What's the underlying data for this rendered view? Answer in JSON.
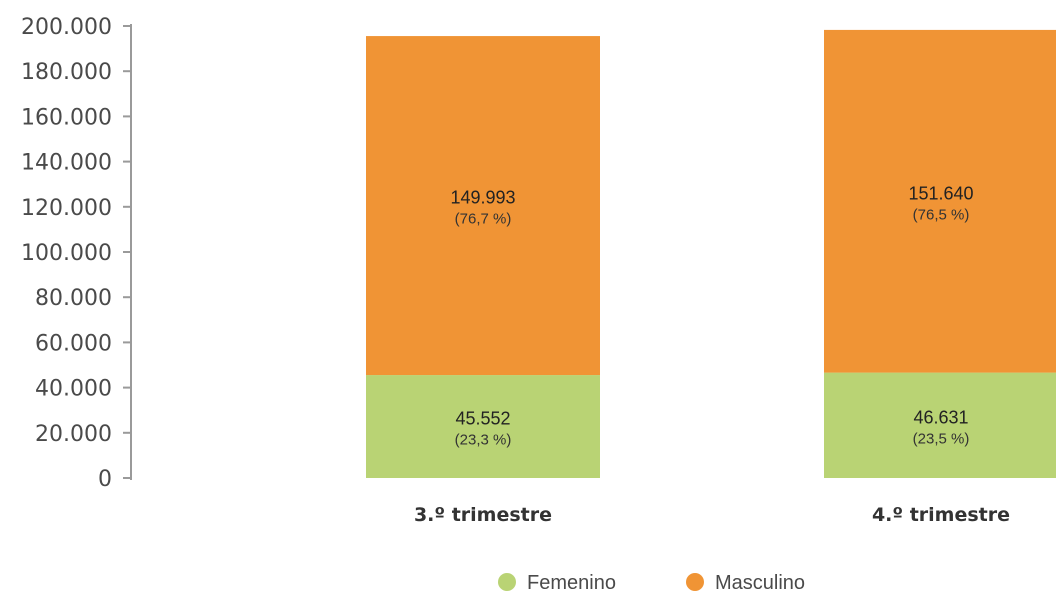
{
  "chart_data": {
    "type": "bar",
    "stacked": true,
    "categories": [
      "3.º trimestre",
      "4.º trimestre"
    ],
    "series": [
      {
        "name": "Femenino",
        "color": "#b9d374",
        "values": [
          45552,
          46631
        ],
        "value_labels": [
          "45.552",
          "46.631"
        ],
        "percent_labels": [
          "(23,3 %)",
          "(23,5 %)"
        ]
      },
      {
        "name": "Masculino",
        "color": "#f09435",
        "values": [
          149993,
          151640
        ],
        "value_labels": [
          "149.993",
          "151.640"
        ],
        "percent_labels": [
          "(76,7 %)",
          "(76,5 %)"
        ]
      }
    ],
    "ylim": [
      0,
      200000
    ],
    "yticks": [
      0,
      20000,
      40000,
      60000,
      80000,
      100000,
      120000,
      140000,
      160000,
      180000,
      200000
    ],
    "ytick_labels": [
      "0",
      "20.000",
      "40.000",
      "60.000",
      "80.000",
      "100.000",
      "120.000",
      "140.000",
      "160.000",
      "180.000",
      "200.000"
    ],
    "title": "",
    "xlabel": "",
    "ylabel": "",
    "grid": false,
    "legend": "bottom-center"
  }
}
